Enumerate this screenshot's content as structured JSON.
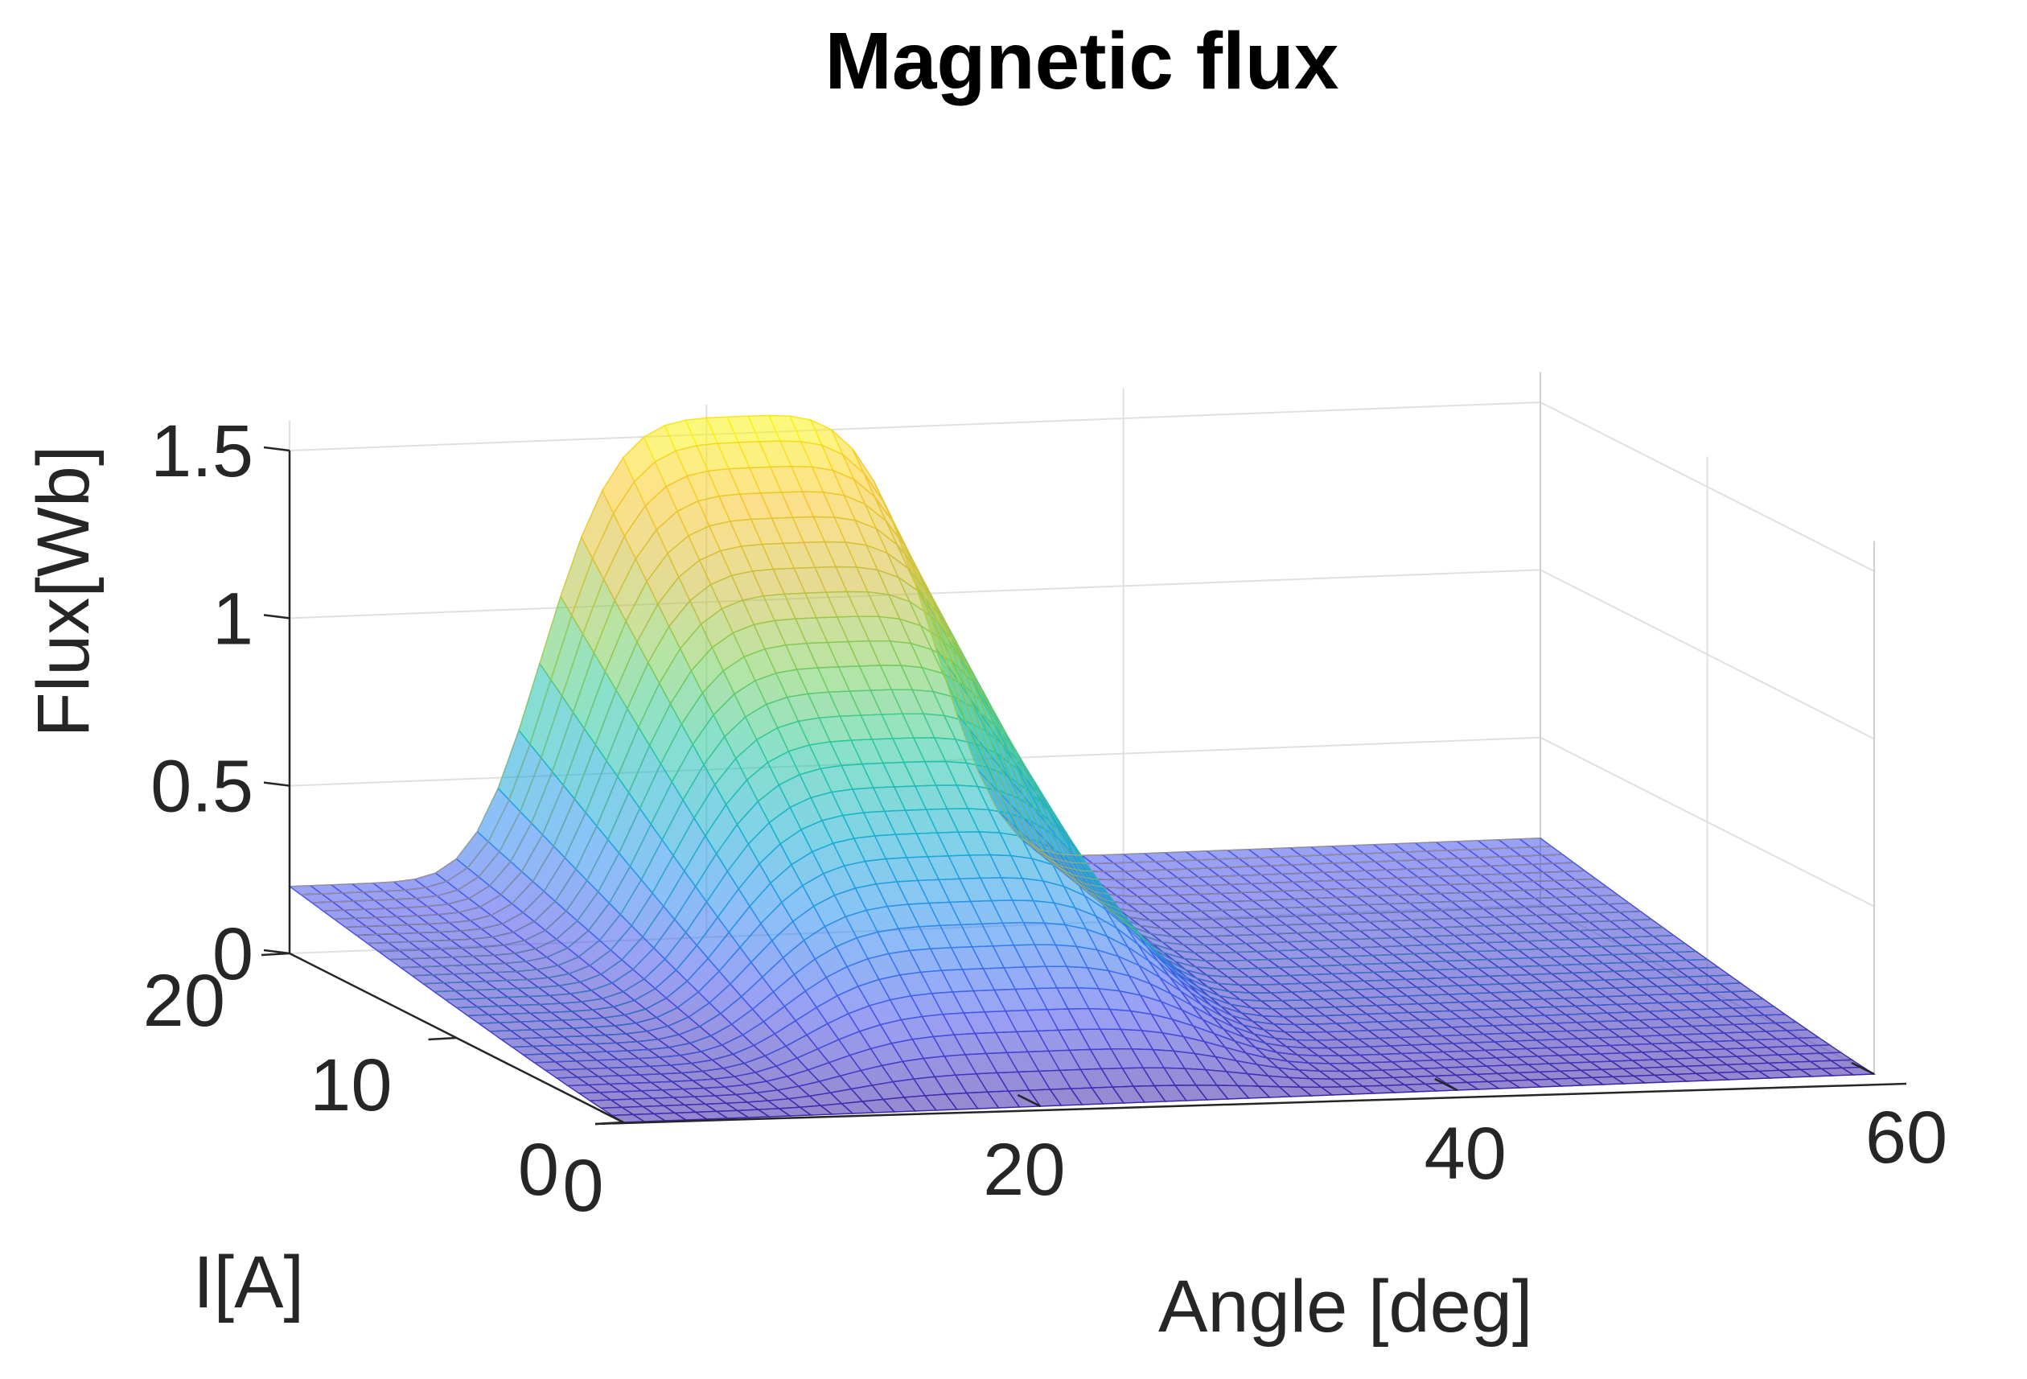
{
  "chart_data": {
    "type": "surface",
    "title": "Magnetic flux",
    "xlabel": "Angle [deg]",
    "ylabel": "I[A]",
    "zlabel": "Flux[Wb]",
    "xlim": [
      0,
      60
    ],
    "ylim": [
      0,
      20
    ],
    "zlim": [
      0,
      1.5
    ],
    "x_ticks": [
      "0",
      "20",
      "40",
      "60"
    ],
    "y_ticks": [
      "0",
      "10",
      "20"
    ],
    "z_ticks": [
      "0",
      "0.5",
      "1",
      "1.5"
    ],
    "x_tick_values": [
      0,
      20,
      40,
      60
    ],
    "y_tick_values": [
      0,
      10,
      20
    ],
    "z_tick_values": [
      0,
      0.5,
      1,
      1.5
    ],
    "colormap": "parula",
    "grid": true,
    "surface_samples": {
      "x_deg": [
        0,
        5,
        10,
        15,
        20,
        25,
        30,
        35,
        40,
        45,
        50,
        55,
        60
      ],
      "flux_at_I_max": [
        0.22,
        0.27,
        0.55,
        1.15,
        1.5,
        1.52,
        1.35,
        1.0,
        0.45,
        0.2,
        0.2,
        0.2,
        0.2
      ],
      "flux_at_I_zero": [
        0,
        0,
        0,
        0,
        0,
        0,
        0,
        0,
        0,
        0,
        0,
        0,
        0
      ]
    },
    "peak": {
      "x": 22,
      "y": 20,
      "z": 1.55
    }
  }
}
